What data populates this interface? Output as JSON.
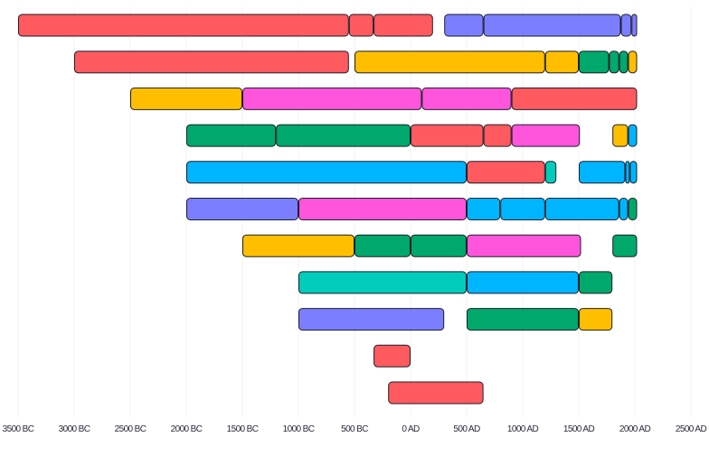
{
  "chart_data": {
    "type": "bar",
    "orientation": "horizontal-timeline",
    "title": "",
    "xlabel": "",
    "ylabel": "",
    "xlim": [
      -3500,
      2500
    ],
    "grid": true,
    "x_tick_values": [
      -3500,
      -3000,
      -2500,
      -2000,
      -1500,
      -1000,
      -500,
      0,
      500,
      1000,
      1500,
      2000,
      2500
    ],
    "x_tick_labels": [
      "3500 BC",
      "3000 BC",
      "2500 BC",
      "2000 BC",
      "1500 BC",
      "1000 BC",
      "500 BC",
      "0 AD",
      "500 AD",
      "1000 AD",
      "1500 AD",
      "2000 AD",
      "2500 AD"
    ],
    "colors": {
      "red": "#ff5a5f",
      "purple": "#7b7fff",
      "yellow": "#ffbf00",
      "green": "#00a86b",
      "pink": "#ff55dd",
      "blue": "#00b5ff",
      "teal": "#00ccbb"
    },
    "rows": [
      [
        [
          -3500,
          -550,
          "red"
        ],
        [
          -550,
          -330,
          "red"
        ],
        [
          -330,
          200,
          "red"
        ],
        [
          300,
          650,
          "purple"
        ],
        [
          650,
          1875,
          "purple"
        ],
        [
          1875,
          1970,
          "purple"
        ],
        [
          1970,
          2020,
          "purple"
        ]
      ],
      [
        [
          -3000,
          -550,
          "red"
        ],
        [
          -500,
          1200,
          "yellow"
        ],
        [
          1200,
          1500,
          "yellow"
        ],
        [
          1500,
          1770,
          "green"
        ],
        [
          1770,
          1860,
          "green"
        ],
        [
          1860,
          1940,
          "green"
        ],
        [
          1940,
          2020,
          "yellow"
        ]
      ],
      [
        [
          -2500,
          -1500,
          "yellow"
        ],
        [
          -1500,
          100,
          "pink"
        ],
        [
          100,
          900,
          "pink"
        ],
        [
          900,
          2020,
          "red"
        ]
      ],
      [
        [
          -2000,
          -1200,
          "green"
        ],
        [
          -1200,
          0,
          "green"
        ],
        [
          0,
          650,
          "red"
        ],
        [
          650,
          900,
          "red"
        ],
        [
          900,
          1510,
          "pink"
        ],
        [
          1800,
          1940,
          "yellow"
        ],
        [
          1940,
          2020,
          "blue"
        ]
      ],
      [
        [
          -2000,
          500,
          "blue"
        ],
        [
          500,
          1200,
          "red"
        ],
        [
          1200,
          1300,
          "teal"
        ],
        [
          1500,
          1915,
          "blue"
        ],
        [
          1915,
          1955,
          "blue"
        ],
        [
          1955,
          2020,
          "blue"
        ]
      ],
      [
        [
          -2000,
          -1000,
          "purple"
        ],
        [
          -1000,
          500,
          "pink"
        ],
        [
          500,
          800,
          "blue"
        ],
        [
          800,
          1200,
          "blue"
        ],
        [
          1200,
          1860,
          "blue"
        ],
        [
          1860,
          1940,
          "blue"
        ],
        [
          1940,
          2020,
          "green"
        ]
      ],
      [
        [
          -1500,
          -500,
          "yellow"
        ],
        [
          -500,
          0,
          "green"
        ],
        [
          0,
          500,
          "green"
        ],
        [
          500,
          1520,
          "pink"
        ],
        [
          1800,
          2020,
          "green"
        ]
      ],
      [
        [
          -1000,
          500,
          "teal"
        ],
        [
          500,
          1500,
          "blue"
        ],
        [
          1500,
          1800,
          "green"
        ]
      ],
      [
        [
          -1000,
          300,
          "purple"
        ],
        [
          500,
          1500,
          "green"
        ],
        [
          1500,
          1800,
          "yellow"
        ]
      ],
      [
        [
          -330,
          0,
          "red"
        ]
      ],
      [
        [
          -200,
          650,
          "red"
        ]
      ]
    ]
  }
}
